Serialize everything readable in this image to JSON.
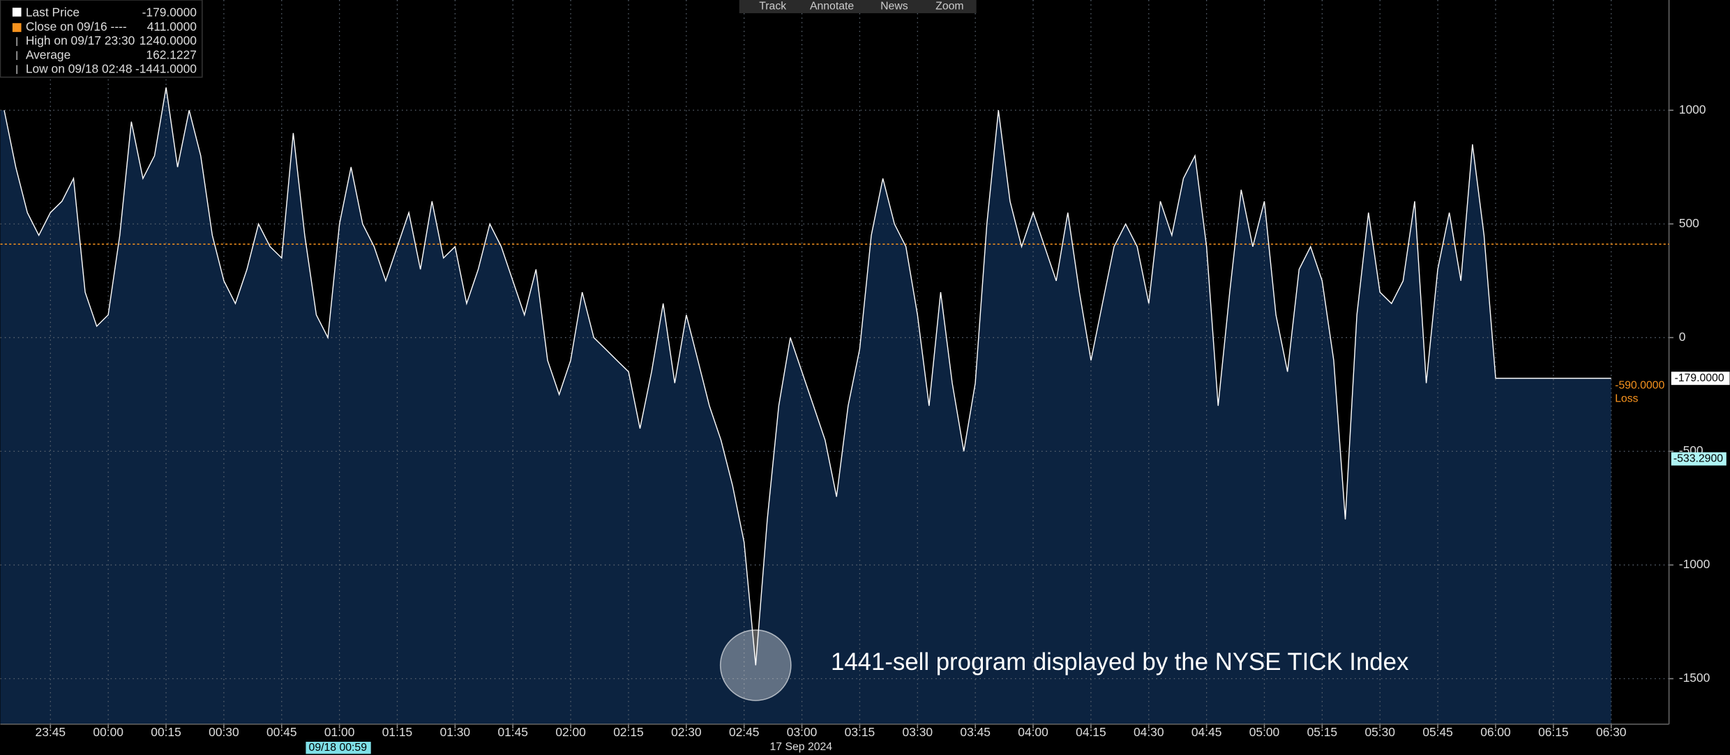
{
  "chart_data": {
    "type": "line",
    "series": [
      {
        "name": "Last Price",
        "color": "#ffffff",
        "x": [
          "23:33",
          "23:36",
          "23:39",
          "23:42",
          "23:45",
          "23:48",
          "23:51",
          "23:54",
          "23:57",
          "00:00",
          "00:03",
          "00:06",
          "00:09",
          "00:12",
          "00:15",
          "00:18",
          "00:21",
          "00:24",
          "00:27",
          "00:30",
          "00:33",
          "00:36",
          "00:39",
          "00:42",
          "00:45",
          "00:48",
          "00:51",
          "00:54",
          "00:57",
          "01:00",
          "01:03",
          "01:06",
          "01:09",
          "01:12",
          "01:15",
          "01:18",
          "01:21",
          "01:24",
          "01:27",
          "01:30",
          "01:33",
          "01:36",
          "01:39",
          "01:42",
          "01:45",
          "01:48",
          "01:51",
          "01:54",
          "01:57",
          "02:00",
          "02:03",
          "02:06",
          "02:09",
          "02:12",
          "02:15",
          "02:18",
          "02:21",
          "02:24",
          "02:27",
          "02:30",
          "02:33",
          "02:36",
          "02:39",
          "02:42",
          "02:45",
          "02:48",
          "02:51",
          "02:54",
          "02:57",
          "03:00",
          "03:03",
          "03:06",
          "03:09",
          "03:12",
          "03:15",
          "03:18",
          "03:21",
          "03:24",
          "03:27",
          "03:30",
          "03:33",
          "03:36",
          "03:39",
          "03:42",
          "03:45",
          "03:48",
          "03:51",
          "03:54",
          "03:57",
          "04:00",
          "04:03",
          "04:06",
          "04:09",
          "04:12",
          "04:15",
          "04:18",
          "04:21",
          "04:24",
          "04:27",
          "04:30",
          "04:33",
          "04:36",
          "04:39",
          "04:42",
          "04:45",
          "04:48",
          "04:51",
          "04:54",
          "04:57",
          "05:00",
          "05:03",
          "05:06",
          "05:09",
          "05:12",
          "05:15",
          "05:18",
          "05:21",
          "05:24",
          "05:27",
          "05:30",
          "05:33",
          "05:36",
          "05:39",
          "05:42",
          "05:45",
          "05:48",
          "05:51",
          "05:54",
          "05:57",
          "06:00",
          "06:15",
          "06:30"
        ],
        "values": [
          1000,
          750,
          550,
          450,
          550,
          600,
          700,
          200,
          50,
          100,
          450,
          950,
          700,
          800,
          1100,
          750,
          1000,
          800,
          450,
          250,
          150,
          300,
          500,
          400,
          350,
          900,
          450,
          100,
          0,
          500,
          750,
          500,
          400,
          250,
          400,
          550,
          300,
          600,
          350,
          400,
          150,
          300,
          500,
          400,
          250,
          100,
          300,
          -100,
          -250,
          -100,
          200,
          0,
          -50,
          -100,
          -150,
          -400,
          -150,
          150,
          -200,
          100,
          -100,
          -300,
          -450,
          -650,
          -900,
          -1441,
          -800,
          -300,
          0,
          -150,
          -300,
          -450,
          -700,
          -300,
          -50,
          450,
          700,
          500,
          400,
          100,
          -300,
          200,
          -200,
          -500,
          -200,
          500,
          1000,
          600,
          400,
          550,
          400,
          250,
          550,
          200,
          -100,
          150,
          400,
          500,
          400,
          150,
          600,
          450,
          700,
          800,
          400,
          -300,
          200,
          650,
          400,
          600,
          100,
          -150,
          300,
          400,
          250,
          -100,
          -800,
          100,
          550,
          200,
          150,
          250,
          600,
          -200,
          300,
          550,
          250,
          850,
          450,
          -179,
          -179,
          -179
        ]
      }
    ],
    "last": {
      "value": -179,
      "label": "-179.0000"
    },
    "stats": [
      {
        "name": "Close on 09/16 ----",
        "color": "#f7931e",
        "value": {
          "value": 411,
          "label": "411.0000"
        }
      },
      {
        "name": "High on 09/17 23:30",
        "value": {
          "value": 1240,
          "label": "1240.0000"
        }
      },
      {
        "name": "Average",
        "value": {
          "value": 162.1227,
          "label": "162.1227"
        }
      },
      {
        "name": "Low on 09/18 02:48",
        "value": {
          "value": -1441,
          "label": "-1441.0000"
        }
      }
    ],
    "xlim": [
      "23:32",
      "06:45"
    ],
    "xticks": [
      "23:45",
      "00:00",
      "00:15",
      "00:30",
      "00:45",
      "01:00",
      "01:15",
      "01:30",
      "01:45",
      "02:00",
      "02:15",
      "02:30",
      "02:45",
      "03:00",
      "03:15",
      "03:30",
      "03:45",
      "04:00",
      "04:15",
      "04:30",
      "04:45",
      "05:00",
      "05:15",
      "05:30",
      "05:45",
      "06:00",
      "06:15",
      "06:30"
    ],
    "ylim": [
      -1700,
      1485
    ],
    "yticks": [
      1000,
      500,
      0,
      -500,
      -1000,
      -1500
    ],
    "grid": true,
    "loss": {
      "value": {
        "value": -590,
        "label": "-590.0000"
      },
      "note": "Loss"
    },
    "level": {
      "value": -533.29,
      "label": "-533.2900"
    },
    "annotation": "1441-sell program displayed by the NYSE TICK Index",
    "cursor_label": "09/18 00:59",
    "date_label": "17 Sep 2024"
  },
  "toolbar": [
    "Track",
    "Annotate",
    "News",
    "Zoom"
  ]
}
